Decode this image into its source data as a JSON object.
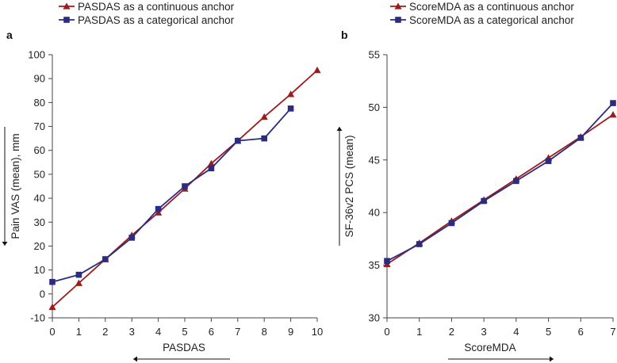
{
  "colors": {
    "continuous": "#9b1c1c",
    "categorical": "#2b2b80",
    "axis": "#444444"
  },
  "chart_data": [
    {
      "type": "line",
      "panel_label": "a",
      "xlabel": "PASDAS",
      "ylabel": "Pain VAS (mean), mm",
      "x_ticks": [
        0,
        1,
        2,
        3,
        4,
        5,
        6,
        7,
        8,
        9,
        10
      ],
      "y_ticks": [
        -10,
        0,
        10,
        20,
        30,
        40,
        50,
        60,
        70,
        80,
        90,
        100
      ],
      "xlim": [
        0,
        10
      ],
      "ylim": [
        -10,
        100
      ],
      "ylabel_arrow": "down",
      "xlabel_arrow": "left",
      "series": [
        {
          "name": "PASDAS as a continuous anchor",
          "marker": "triangle",
          "x": [
            0,
            1,
            2,
            3,
            4,
            5,
            6,
            7,
            8,
            9,
            10
          ],
          "y": [
            -5.5,
            4.5,
            14.5,
            24.5,
            34,
            44,
            54.5,
            64,
            74,
            83.5,
            93.5
          ]
        },
        {
          "name": "PASDAS as a categorical anchor",
          "marker": "square",
          "x": [
            0,
            1,
            2,
            3,
            4,
            5,
            6,
            7,
            8,
            9
          ],
          "y": [
            5,
            8,
            14.5,
            23.5,
            35.5,
            45,
            52.5,
            64,
            65,
            77.5
          ]
        }
      ]
    },
    {
      "type": "line",
      "panel_label": "b",
      "xlabel": "ScoreMDA",
      "ylabel": "SF-36v2 PCS (mean)",
      "x_ticks": [
        0,
        1,
        2,
        3,
        4,
        5,
        6,
        7
      ],
      "y_ticks": [
        30,
        35,
        40,
        45,
        50,
        55
      ],
      "xlim": [
        0,
        7
      ],
      "ylim": [
        30,
        55
      ],
      "ylabel_arrow": "up",
      "xlabel_arrow": "right",
      "series": [
        {
          "name": "ScoreMDA as a continuous anchor",
          "marker": "triangle",
          "x": [
            0,
            1,
            2,
            3,
            4,
            5,
            6,
            7
          ],
          "y": [
            35.1,
            37.1,
            39.2,
            41.2,
            43.2,
            45.2,
            47.2,
            49.3
          ]
        },
        {
          "name": "ScoreMDA as a categorical anchor",
          "marker": "square",
          "x": [
            0,
            1,
            2,
            3,
            4,
            5,
            6,
            7
          ],
          "y": [
            35.4,
            37.0,
            39.0,
            41.1,
            43.0,
            44.9,
            47.1,
            50.4
          ]
        }
      ]
    }
  ]
}
